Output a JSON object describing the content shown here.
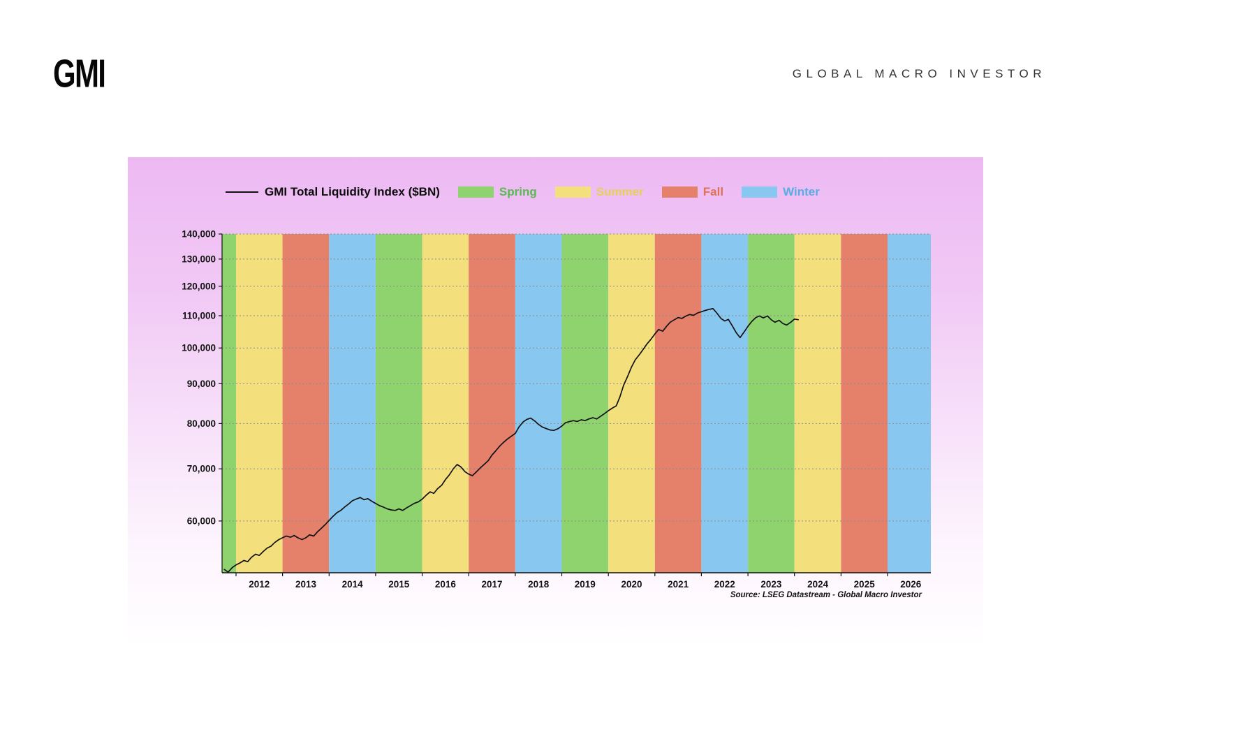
{
  "header": {
    "logo_text": "GMI",
    "brand_title": "GLOBAL MACRO INVESTOR"
  },
  "legend": {
    "series_label": "GMI Total Liquidity Index ($BN)",
    "seasons": [
      {
        "label": "Spring",
        "color": "#8fd36e",
        "label_color": "#57bb4f"
      },
      {
        "label": "Summer",
        "color": "#f3e07d",
        "label_color": "#e6d155"
      },
      {
        "label": "Fall",
        "color": "#e5806b",
        "label_color": "#dd7257"
      },
      {
        "label": "Winter",
        "color": "#88c8f0",
        "label_color": "#57aee4"
      }
    ]
  },
  "source_note": "Source: LSEG Datastream - Global Macro Investor",
  "chart_data": {
    "type": "line",
    "title": "GMI Total Liquidity Index ($BN)",
    "x_range": [
      2011.7,
      2026.93
    ],
    "y_range": [
      51500,
      140000
    ],
    "y_scale": "log",
    "grid": "dashed-horizontal",
    "legend_position": "top",
    "line_color": "#111111",
    "y_ticks": [
      60000,
      70000,
      80000,
      90000,
      100000,
      110000,
      120000,
      130000,
      140000
    ],
    "x_tick_years": [
      "2012",
      "2013",
      "2014",
      "2015",
      "2016",
      "2017",
      "2018",
      "2019",
      "2020",
      "2021",
      "2022",
      "2023",
      "2024",
      "2025",
      "2026"
    ],
    "season_bands": [
      {
        "year": 2011,
        "season": "Spring"
      },
      {
        "year": 2012,
        "season": "Summer"
      },
      {
        "year": 2013,
        "season": "Fall"
      },
      {
        "year": 2014,
        "season": "Winter"
      },
      {
        "year": 2015,
        "season": "Spring"
      },
      {
        "year": 2016,
        "season": "Summer"
      },
      {
        "year": 2017,
        "season": "Fall"
      },
      {
        "year": 2018,
        "season": "Winter"
      },
      {
        "year": 2019,
        "season": "Spring"
      },
      {
        "year": 2020,
        "season": "Summer"
      },
      {
        "year": 2021,
        "season": "Fall"
      },
      {
        "year": 2022,
        "season": "Winter"
      },
      {
        "year": 2023,
        "season": "Spring"
      },
      {
        "year": 2024,
        "season": "Summer"
      },
      {
        "year": 2025,
        "season": "Fall"
      },
      {
        "year": 2026,
        "season": "Winter"
      }
    ],
    "series": [
      {
        "name": "GMI Total Liquidity Index ($BN)",
        "points": [
          [
            2011.75,
            52000
          ],
          [
            2011.83,
            51600
          ],
          [
            2011.92,
            52300
          ],
          [
            2012.0,
            52700
          ],
          [
            2012.08,
            53000
          ],
          [
            2012.17,
            53400
          ],
          [
            2012.25,
            53200
          ],
          [
            2012.33,
            53900
          ],
          [
            2012.42,
            54400
          ],
          [
            2012.5,
            54200
          ],
          [
            2012.58,
            54800
          ],
          [
            2012.67,
            55400
          ],
          [
            2012.75,
            55700
          ],
          [
            2012.83,
            56300
          ],
          [
            2012.92,
            56800
          ],
          [
            2013.0,
            57100
          ],
          [
            2013.08,
            57400
          ],
          [
            2013.17,
            57200
          ],
          [
            2013.25,
            57500
          ],
          [
            2013.33,
            57100
          ],
          [
            2013.42,
            56800
          ],
          [
            2013.5,
            57100
          ],
          [
            2013.58,
            57600
          ],
          [
            2013.67,
            57400
          ],
          [
            2013.75,
            58100
          ],
          [
            2013.83,
            58700
          ],
          [
            2013.92,
            59400
          ],
          [
            2014.0,
            60100
          ],
          [
            2014.08,
            60800
          ],
          [
            2014.17,
            61500
          ],
          [
            2014.25,
            61900
          ],
          [
            2014.33,
            62500
          ],
          [
            2014.42,
            63100
          ],
          [
            2014.5,
            63700
          ],
          [
            2014.58,
            64000
          ],
          [
            2014.67,
            64300
          ],
          [
            2014.75,
            63900
          ],
          [
            2014.83,
            64100
          ],
          [
            2014.92,
            63600
          ],
          [
            2015.0,
            63200
          ],
          [
            2015.08,
            62800
          ],
          [
            2015.17,
            62500
          ],
          [
            2015.25,
            62200
          ],
          [
            2015.33,
            62000
          ],
          [
            2015.42,
            61900
          ],
          [
            2015.5,
            62200
          ],
          [
            2015.58,
            61900
          ],
          [
            2015.67,
            62400
          ],
          [
            2015.75,
            62800
          ],
          [
            2015.83,
            63200
          ],
          [
            2015.92,
            63500
          ],
          [
            2016.0,
            64000
          ],
          [
            2016.08,
            64700
          ],
          [
            2016.17,
            65400
          ],
          [
            2016.25,
            65100
          ],
          [
            2016.33,
            66000
          ],
          [
            2016.42,
            66700
          ],
          [
            2016.5,
            67800
          ],
          [
            2016.58,
            68700
          ],
          [
            2016.67,
            70000
          ],
          [
            2016.75,
            70900
          ],
          [
            2016.83,
            70400
          ],
          [
            2016.92,
            69400
          ],
          [
            2017.0,
            68900
          ],
          [
            2017.08,
            68600
          ],
          [
            2017.17,
            69400
          ],
          [
            2017.25,
            70200
          ],
          [
            2017.33,
            70900
          ],
          [
            2017.42,
            71700
          ],
          [
            2017.5,
            72900
          ],
          [
            2017.58,
            73800
          ],
          [
            2017.67,
            74900
          ],
          [
            2017.75,
            75700
          ],
          [
            2017.83,
            76400
          ],
          [
            2017.92,
            77100
          ],
          [
            2018.0,
            77700
          ],
          [
            2018.08,
            79200
          ],
          [
            2018.17,
            80400
          ],
          [
            2018.25,
            81000
          ],
          [
            2018.33,
            81300
          ],
          [
            2018.42,
            80600
          ],
          [
            2018.5,
            79800
          ],
          [
            2018.58,
            79200
          ],
          [
            2018.67,
            78800
          ],
          [
            2018.75,
            78500
          ],
          [
            2018.83,
            78400
          ],
          [
            2018.92,
            78800
          ],
          [
            2019.0,
            79400
          ],
          [
            2019.08,
            80200
          ],
          [
            2019.17,
            80500
          ],
          [
            2019.25,
            80700
          ],
          [
            2019.33,
            80500
          ],
          [
            2019.42,
            80900
          ],
          [
            2019.5,
            80700
          ],
          [
            2019.58,
            81100
          ],
          [
            2019.67,
            81400
          ],
          [
            2019.75,
            81100
          ],
          [
            2019.83,
            81700
          ],
          [
            2019.92,
            82400
          ],
          [
            2020.0,
            83100
          ],
          [
            2020.08,
            83700
          ],
          [
            2020.17,
            84300
          ],
          [
            2020.25,
            86600
          ],
          [
            2020.33,
            89600
          ],
          [
            2020.42,
            92100
          ],
          [
            2020.5,
            94600
          ],
          [
            2020.58,
            96600
          ],
          [
            2020.67,
            98100
          ],
          [
            2020.75,
            99600
          ],
          [
            2020.83,
            101200
          ],
          [
            2020.92,
            102700
          ],
          [
            2021.0,
            104200
          ],
          [
            2021.08,
            105600
          ],
          [
            2021.17,
            105100
          ],
          [
            2021.25,
            106600
          ],
          [
            2021.33,
            107900
          ],
          [
            2021.42,
            108700
          ],
          [
            2021.5,
            109400
          ],
          [
            2021.58,
            109100
          ],
          [
            2021.67,
            109900
          ],
          [
            2021.75,
            110400
          ],
          [
            2021.83,
            110100
          ],
          [
            2021.92,
            110900
          ],
          [
            2022.0,
            111300
          ],
          [
            2022.08,
            111700
          ],
          [
            2022.17,
            112100
          ],
          [
            2022.25,
            112300
          ],
          [
            2022.33,
            110900
          ],
          [
            2022.42,
            109100
          ],
          [
            2022.5,
            108300
          ],
          [
            2022.58,
            108800
          ],
          [
            2022.67,
            106600
          ],
          [
            2022.75,
            104600
          ],
          [
            2022.83,
            103100
          ],
          [
            2022.92,
            104900
          ],
          [
            2023.0,
            106600
          ],
          [
            2023.08,
            108100
          ],
          [
            2023.17,
            109400
          ],
          [
            2023.25,
            109900
          ],
          [
            2023.33,
            109300
          ],
          [
            2023.42,
            109900
          ],
          [
            2023.5,
            108700
          ],
          [
            2023.58,
            107900
          ],
          [
            2023.67,
            108500
          ],
          [
            2023.75,
            107500
          ],
          [
            2023.83,
            107000
          ],
          [
            2023.92,
            107900
          ],
          [
            2024.0,
            108900
          ],
          [
            2024.08,
            108700
          ]
        ]
      }
    ]
  }
}
